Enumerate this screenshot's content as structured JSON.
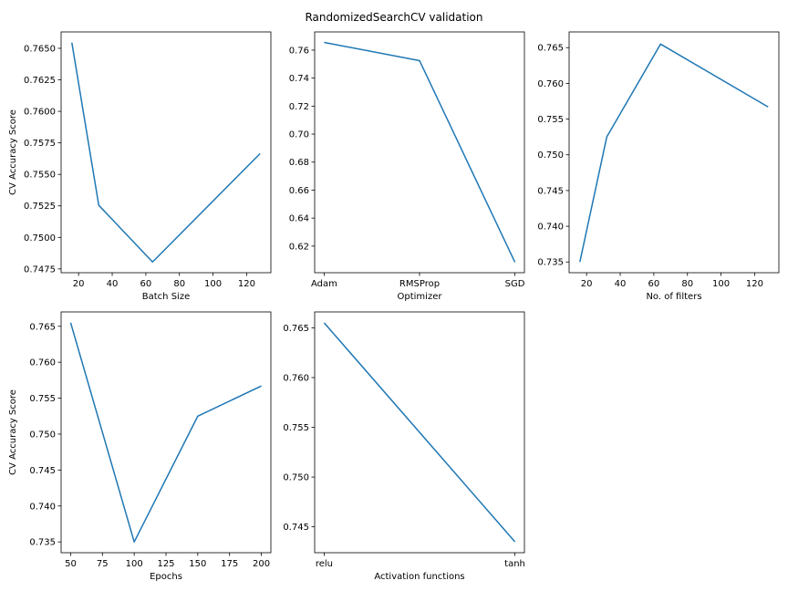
{
  "figure": {
    "title": "RandomizedSearchCV validation"
  },
  "chart_data": [
    {
      "type": "line",
      "xlabel": "Batch Size",
      "ylabel": "CV Accuracy Score",
      "x": [
        16,
        32,
        64,
        128
      ],
      "y": [
        0.76545,
        0.75255,
        0.74805,
        0.75665
      ],
      "xlim": [
        9.6,
        134.4
      ],
      "ylim": [
        0.7472,
        0.7663
      ],
      "xticks": [
        20,
        40,
        60,
        80,
        100,
        120
      ],
      "yticks": [
        0.7475,
        0.75,
        0.7525,
        0.755,
        0.7575,
        0.76,
        0.7625,
        0.765
      ],
      "xtick_labels": [
        "20",
        "40",
        "60",
        "80",
        "100",
        "120"
      ],
      "ytick_labels": [
        "0.7475",
        "0.7500",
        "0.7525",
        "0.7550",
        "0.7575",
        "0.7600",
        "0.7625",
        "0.7650"
      ],
      "color": "#1f77b4"
    },
    {
      "type": "line",
      "xlabel": "Optimizer",
      "ylabel": "",
      "categories": [
        "Adam",
        "RMSProp",
        "SGD"
      ],
      "x": [
        0,
        1,
        2
      ],
      "y": [
        0.7655,
        0.7525,
        0.6085
      ],
      "xlim": [
        -0.1,
        2.1
      ],
      "ylim": [
        0.601,
        0.773
      ],
      "xticks": [
        0,
        1,
        2
      ],
      "yticks": [
        0.62,
        0.64,
        0.66,
        0.68,
        0.7,
        0.72,
        0.74,
        0.76
      ],
      "xtick_labels": [
        "Adam",
        "RMSProp",
        "SGD"
      ],
      "ytick_labels": [
        "0.62",
        "0.64",
        "0.66",
        "0.68",
        "0.70",
        "0.72",
        "0.74",
        "0.76"
      ],
      "color": "#1f77b4"
    },
    {
      "type": "line",
      "xlabel": "No. of filters",
      "ylabel": "",
      "x": [
        16,
        32,
        64,
        128
      ],
      "y": [
        0.735,
        0.7525,
        0.7655,
        0.7567
      ],
      "xlim": [
        9.6,
        134.4
      ],
      "ylim": [
        0.7335,
        0.7672
      ],
      "xticks": [
        20,
        40,
        60,
        80,
        100,
        120
      ],
      "yticks": [
        0.735,
        0.74,
        0.745,
        0.75,
        0.755,
        0.76,
        0.765
      ],
      "xtick_labels": [
        "20",
        "40",
        "60",
        "80",
        "100",
        "120"
      ],
      "ytick_labels": [
        "0.735",
        "0.740",
        "0.745",
        "0.750",
        "0.755",
        "0.760",
        "0.765"
      ],
      "color": "#1f77b4"
    },
    {
      "type": "line",
      "xlabel": "Epochs",
      "ylabel": "CV Accuracy Score",
      "x": [
        50,
        100,
        150,
        200
      ],
      "y": [
        0.7655,
        0.735,
        0.7525,
        0.7567
      ],
      "xlim": [
        42.5,
        207.5
      ],
      "ylim": [
        0.7335,
        0.767
      ],
      "xticks": [
        50,
        75,
        100,
        125,
        150,
        175,
        200
      ],
      "yticks": [
        0.735,
        0.74,
        0.745,
        0.75,
        0.755,
        0.76,
        0.765
      ],
      "xtick_labels": [
        "50",
        "75",
        "100",
        "125",
        "150",
        "175",
        "200"
      ],
      "ytick_labels": [
        "0.735",
        "0.740",
        "0.745",
        "0.750",
        "0.755",
        "0.760",
        "0.765"
      ],
      "color": "#1f77b4"
    },
    {
      "type": "line",
      "xlabel": "Activation functions",
      "ylabel": "",
      "categories": [
        "relu",
        "tanh"
      ],
      "x": [
        0,
        1
      ],
      "y": [
        0.7655,
        0.7435
      ],
      "xlim": [
        -0.05,
        1.05
      ],
      "ylim": [
        0.7424,
        0.7666
      ],
      "xticks": [
        0,
        1
      ],
      "yticks": [
        0.745,
        0.75,
        0.755,
        0.76,
        0.765
      ],
      "xtick_labels": [
        "relu",
        "tanh"
      ],
      "ytick_labels": [
        "0.745",
        "0.750",
        "0.755",
        "0.760",
        "0.765"
      ],
      "color": "#1f77b4"
    }
  ]
}
